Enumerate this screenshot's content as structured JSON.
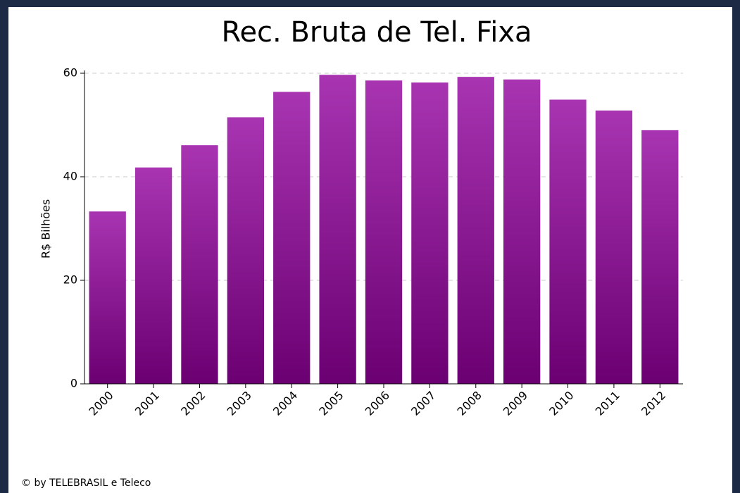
{
  "chart_data": {
    "type": "bar",
    "title": "Rec. Bruta de Tel. Fixa",
    "y_label": "R$ Bilhões",
    "categories": [
      "2000",
      "2001",
      "2002",
      "2003",
      "2004",
      "2005",
      "2006",
      "2007",
      "2008",
      "2009",
      "2010",
      "2011",
      "2012"
    ],
    "values": [
      33.3,
      41.8,
      46.1,
      51.5,
      56.4,
      59.7,
      58.6,
      58.2,
      59.3,
      58.8,
      54.9,
      52.8,
      49.0
    ],
    "gradient": [
      "#a834b1",
      "#6b0072"
    ],
    "ylim": [
      0,
      60
    ],
    "yticks": [
      0,
      20,
      40,
      60
    ],
    "grid": true,
    "footer": "© by TELEBRASIL e Teleco"
  }
}
